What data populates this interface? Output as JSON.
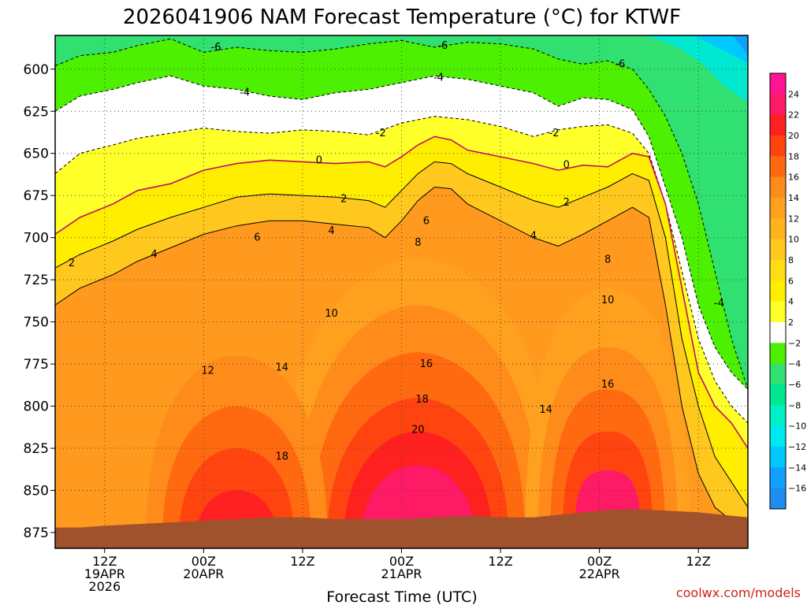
{
  "chart_data": {
    "type": "heatmap",
    "title": "2026041906 NAM Forecast Temperature (°C) for KTWF",
    "xlabel": "Forecast Time (UTC)",
    "ylabel": "",
    "y_ticks": [
      600,
      625,
      650,
      675,
      700,
      725,
      750,
      775,
      800,
      825,
      850,
      875
    ],
    "ylim": [
      875,
      580
    ],
    "x_ticks": [
      {
        "h": 6,
        "line1": "12Z",
        "line2": "19APR",
        "line3": "2026"
      },
      {
        "h": 18,
        "line1": "00Z",
        "line2": "20APR",
        "line3": ""
      },
      {
        "h": 30,
        "line1": "12Z",
        "line2": "",
        "line3": ""
      },
      {
        "h": 42,
        "line1": "00Z",
        "line2": "21APR",
        "line3": ""
      },
      {
        "h": 54,
        "line1": "12Z",
        "line2": "",
        "line3": ""
      },
      {
        "h": 66,
        "line1": "00Z",
        "line2": "22APR",
        "line3": ""
      },
      {
        "h": 78,
        "line1": "12Z",
        "line2": "",
        "line3": ""
      }
    ],
    "xlim": [
      0,
      84
    ],
    "colorbar": {
      "labels": [
        "24",
        "22",
        "20",
        "18",
        "16",
        "14",
        "12",
        "10",
        "8",
        "6",
        "4",
        "2",
        "−2",
        "−4",
        "−6",
        "−8",
        "−10",
        "−12",
        "−14",
        "−16"
      ],
      "colors": [
        "#ff1493",
        "#ff1a66",
        "#ff2020",
        "#ff4410",
        "#ff6a10",
        "#ff8c1a",
        "#ffa01e",
        "#ffb41e",
        "#ffc81e",
        "#ffdc14",
        "#ffee00",
        "#ffff2a",
        "#ffffff",
        "#4cf000",
        "#30e070",
        "#00e890",
        "#00f0c8",
        "#00e8f0",
        "#00c8ff",
        "#10a0ff",
        "#1e8cf0"
      ]
    },
    "isotherms": [
      {
        "label": "-6",
        "dashed": true,
        "points": [
          [
            0,
            598
          ],
          [
            3,
            592
          ],
          [
            7,
            590
          ],
          [
            10,
            586
          ],
          [
            14,
            582
          ],
          [
            18,
            590
          ],
          [
            22,
            587
          ],
          [
            26,
            589
          ],
          [
            30,
            590
          ],
          [
            34,
            588
          ],
          [
            38,
            585
          ],
          [
            42,
            583
          ],
          [
            46,
            587
          ],
          [
            50,
            584
          ],
          [
            54,
            585
          ],
          [
            58,
            588
          ],
          [
            61,
            594
          ],
          [
            64,
            597
          ],
          [
            67,
            595
          ],
          [
            70,
            600
          ],
          [
            72,
            612
          ],
          [
            74,
            628
          ],
          [
            76,
            650
          ],
          [
            78,
            680
          ],
          [
            80,
            720
          ],
          [
            82,
            760
          ],
          [
            84,
            790
          ]
        ]
      },
      {
        "label": "-4",
        "dashed": true,
        "points": [
          [
            0,
            625
          ],
          [
            3,
            616
          ],
          [
            7,
            612
          ],
          [
            10,
            608
          ],
          [
            14,
            604
          ],
          [
            18,
            610
          ],
          [
            22,
            612
          ],
          [
            26,
            616
          ],
          [
            30,
            618
          ],
          [
            34,
            614
          ],
          [
            38,
            612
          ],
          [
            42,
            608
          ],
          [
            46,
            604
          ],
          [
            50,
            606
          ],
          [
            54,
            610
          ],
          [
            58,
            614
          ],
          [
            61,
            622
          ],
          [
            64,
            617
          ],
          [
            67,
            618
          ],
          [
            70,
            624
          ],
          [
            72,
            640
          ],
          [
            74,
            670
          ],
          [
            76,
            700
          ],
          [
            78,
            740
          ],
          [
            80,
            765
          ],
          [
            82,
            780
          ],
          [
            84,
            790
          ]
        ]
      },
      {
        "label": "-2",
        "dashed": true,
        "points": [
          [
            0,
            662
          ],
          [
            3,
            650
          ],
          [
            7,
            645
          ],
          [
            10,
            641
          ],
          [
            14,
            638
          ],
          [
            18,
            635
          ],
          [
            22,
            637
          ],
          [
            26,
            638
          ],
          [
            30,
            636
          ],
          [
            34,
            637
          ],
          [
            38,
            639
          ],
          [
            42,
            632
          ],
          [
            46,
            628
          ],
          [
            50,
            630
          ],
          [
            54,
            634
          ],
          [
            58,
            640
          ],
          [
            61,
            636
          ],
          [
            64,
            634
          ],
          [
            67,
            633
          ],
          [
            70,
            638
          ],
          [
            72,
            650
          ],
          [
            74,
            680
          ],
          [
            76,
            720
          ],
          [
            78,
            760
          ],
          [
            80,
            785
          ],
          [
            82,
            800
          ],
          [
            84,
            810
          ]
        ]
      },
      {
        "label": "0",
        "dashed": false,
        "points": [
          [
            0,
            698
          ],
          [
            3,
            688
          ],
          [
            7,
            680
          ],
          [
            10,
            672
          ],
          [
            14,
            668
          ],
          [
            18,
            660
          ],
          [
            22,
            656
          ],
          [
            26,
            654
          ],
          [
            30,
            655
          ],
          [
            34,
            656
          ],
          [
            38,
            655
          ],
          [
            40,
            658
          ],
          [
            42,
            652
          ],
          [
            44,
            645
          ],
          [
            46,
            640
          ],
          [
            48,
            642
          ],
          [
            50,
            648
          ],
          [
            54,
            652
          ],
          [
            58,
            656
          ],
          [
            61,
            660
          ],
          [
            64,
            657
          ],
          [
            67,
            658
          ],
          [
            70,
            650
          ],
          [
            72,
            652
          ],
          [
            74,
            680
          ],
          [
            76,
            730
          ],
          [
            78,
            780
          ],
          [
            80,
            800
          ],
          [
            82,
            810
          ],
          [
            84,
            825
          ]
        ]
      },
      {
        "label": "2",
        "dashed": false,
        "points": [
          [
            0,
            718
          ],
          [
            3,
            710
          ],
          [
            7,
            702
          ],
          [
            10,
            695
          ],
          [
            14,
            688
          ],
          [
            18,
            682
          ],
          [
            22,
            676
          ],
          [
            26,
            674
          ],
          [
            30,
            675
          ],
          [
            34,
            676
          ],
          [
            38,
            678
          ],
          [
            40,
            682
          ],
          [
            42,
            672
          ],
          [
            44,
            662
          ],
          [
            46,
            655
          ],
          [
            48,
            656
          ],
          [
            50,
            662
          ],
          [
            54,
            670
          ],
          [
            58,
            678
          ],
          [
            61,
            682
          ],
          [
            64,
            676
          ],
          [
            67,
            670
          ],
          [
            70,
            662
          ],
          [
            72,
            666
          ],
          [
            74,
            700
          ],
          [
            76,
            760
          ],
          [
            78,
            800
          ],
          [
            80,
            830
          ],
          [
            82,
            845
          ],
          [
            84,
            860
          ]
        ]
      },
      {
        "label": "4",
        "dashed": false,
        "points": [
          [
            0,
            740
          ],
          [
            3,
            730
          ],
          [
            7,
            722
          ],
          [
            10,
            714
          ],
          [
            14,
            706
          ],
          [
            18,
            698
          ],
          [
            22,
            693
          ],
          [
            26,
            690
          ],
          [
            30,
            690
          ],
          [
            34,
            692
          ],
          [
            38,
            694
          ],
          [
            40,
            700
          ],
          [
            42,
            690
          ],
          [
            44,
            678
          ],
          [
            46,
            670
          ],
          [
            48,
            671
          ],
          [
            50,
            680
          ],
          [
            54,
            690
          ],
          [
            58,
            700
          ],
          [
            61,
            705
          ],
          [
            64,
            698
          ],
          [
            67,
            690
          ],
          [
            70,
            682
          ],
          [
            72,
            688
          ],
          [
            74,
            740
          ],
          [
            76,
            800
          ],
          [
            78,
            840
          ],
          [
            80,
            860
          ],
          [
            82,
            868
          ],
          [
            84,
            872
          ]
        ]
      }
    ],
    "contour_labels": [
      {
        "text": "-6",
        "h": 19.5,
        "p": 587
      },
      {
        "text": "-6",
        "h": 47,
        "p": 586
      },
      {
        "text": "-6",
        "h": 68.5,
        "p": 597
      },
      {
        "text": "-4",
        "h": 23,
        "p": 614
      },
      {
        "text": "-4",
        "h": 46.5,
        "p": 605
      },
      {
        "text": "-4",
        "h": 80.5,
        "p": 739
      },
      {
        "text": "-2",
        "h": 39.5,
        "p": 638
      },
      {
        "text": "-2",
        "h": 60.5,
        "p": 638
      },
      {
        "text": "0",
        "h": 32,
        "p": 654
      },
      {
        "text": "0",
        "h": 62,
        "p": 657
      },
      {
        "text": "2",
        "h": 2,
        "p": 715
      },
      {
        "text": "2",
        "h": 35,
        "p": 677
      },
      {
        "text": "2",
        "h": 62,
        "p": 679
      },
      {
        "text": "4",
        "h": 12,
        "p": 710
      },
      {
        "text": "4",
        "h": 33.5,
        "p": 696
      },
      {
        "text": "4",
        "h": 58,
        "p": 699
      },
      {
        "text": "6",
        "h": 24.5,
        "p": 700
      },
      {
        "text": "6",
        "h": 45,
        "p": 690
      },
      {
        "text": "8",
        "h": 44,
        "p": 703
      },
      {
        "text": "8",
        "h": 67,
        "p": 713
      },
      {
        "text": "10",
        "h": 33.5,
        "p": 745
      },
      {
        "text": "10",
        "h": 67,
        "p": 737
      },
      {
        "text": "12",
        "h": 18.5,
        "p": 779
      },
      {
        "text": "14",
        "h": 27.5,
        "p": 777
      },
      {
        "text": "14",
        "h": 59.5,
        "p": 802
      },
      {
        "text": "16",
        "h": 45,
        "p": 775
      },
      {
        "text": "16",
        "h": 67,
        "p": 787
      },
      {
        "text": "18",
        "h": 44.5,
        "p": 796
      },
      {
        "text": "18",
        "h": 27.5,
        "p": 830
      },
      {
        "text": "20",
        "h": 44,
        "p": 814
      }
    ],
    "terrain": [
      [
        0,
        872
      ],
      [
        3,
        872
      ],
      [
        6,
        871
      ],
      [
        10,
        870
      ],
      [
        14,
        869
      ],
      [
        18,
        868
      ],
      [
        22,
        867
      ],
      [
        26,
        866
      ],
      [
        30,
        866
      ],
      [
        34,
        867
      ],
      [
        38,
        867
      ],
      [
        42,
        867
      ],
      [
        46,
        866
      ],
      [
        50,
        865
      ],
      [
        54,
        866
      ],
      [
        58,
        866
      ],
      [
        62,
        864
      ],
      [
        66,
        862
      ],
      [
        70,
        861
      ],
      [
        74,
        862
      ],
      [
        78,
        863
      ],
      [
        82,
        865
      ],
      [
        84,
        866
      ]
    ]
  },
  "credit": "coolwx.com/models"
}
